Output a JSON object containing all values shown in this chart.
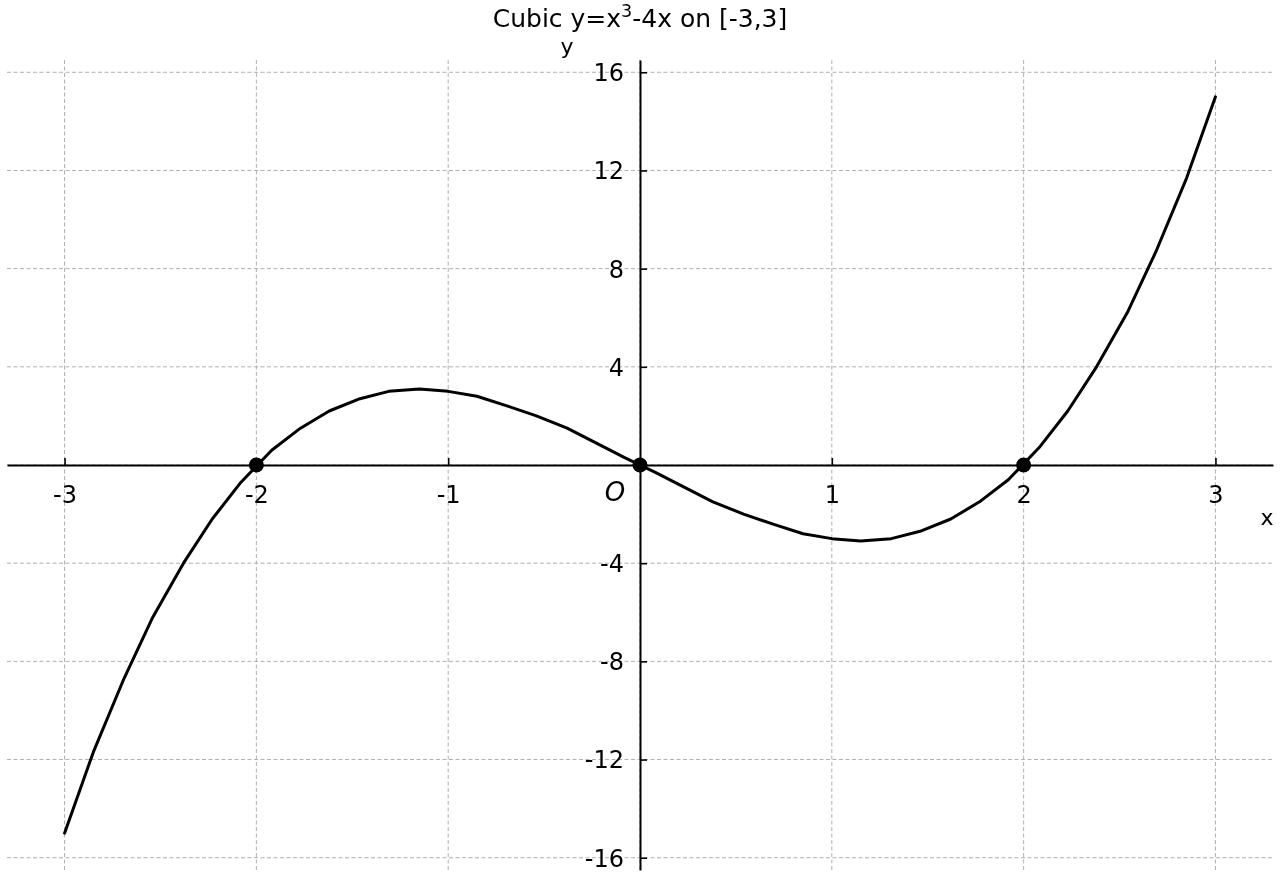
{
  "chart_data": {
    "type": "line",
    "title": "Cubic y=x$^{3}$-4x on [-3,3]",
    "xlabel": "x",
    "ylabel": "y",
    "annotations": [
      {
        "text": "O",
        "x": 0,
        "y": 0
      }
    ],
    "series": [
      {
        "color": "#000000",
        "marker": "none",
        "x": [
          -3,
          -2.85,
          -2.69,
          -2.54,
          -2.38,
          -2.23,
          -2.08,
          -1.92,
          -1.77,
          -1.62,
          -1.46,
          -1.31,
          -1.15,
          -1,
          -0.85,
          -0.69,
          -0.54,
          -0.38,
          -0.23,
          -0.08,
          0.08,
          0.23,
          0.38,
          0.54,
          0.69,
          0.85,
          1,
          1.15,
          1.31,
          1.46,
          1.62,
          1.77,
          1.92,
          2.08,
          2.23,
          2.38,
          2.54,
          2.69,
          2.85,
          3
        ],
        "values": [
          -15,
          -11.7,
          -8.7,
          -6.2,
          -4.0,
          -2.2,
          -0.7,
          0.6,
          1.5,
          2.2,
          2.7,
          3.0,
          3.1,
          3.0,
          2.8,
          2.4,
          2.0,
          1.5,
          0.9,
          0.3,
          -0.3,
          -0.9,
          -1.5,
          -2.0,
          -2.4,
          -2.8,
          -3.0,
          -3.1,
          -3.0,
          -2.7,
          -2.2,
          -1.5,
          -0.6,
          0.7,
          2.2,
          4.0,
          6.2,
          8.7,
          11.7,
          15
        ]
      },
      {
        "type": "scatter",
        "color": "#000000",
        "marker": "circle",
        "x": [
          -2,
          0,
          2
        ],
        "values": [
          0,
          0,
          0
        ]
      }
    ],
    "xlim": [
      -3.3,
      3.3
    ],
    "ylim": [
      -16.5,
      16.5
    ],
    "xticks": [
      -3,
      -2,
      -1,
      {
        "value": 0,
        "label": null
      },
      1,
      2,
      3
    ],
    "yticks": [
      -16,
      -12,
      -8,
      -4,
      {
        "value": 0,
        "label": null
      },
      4,
      8,
      12,
      16
    ],
    "grid": true
  }
}
